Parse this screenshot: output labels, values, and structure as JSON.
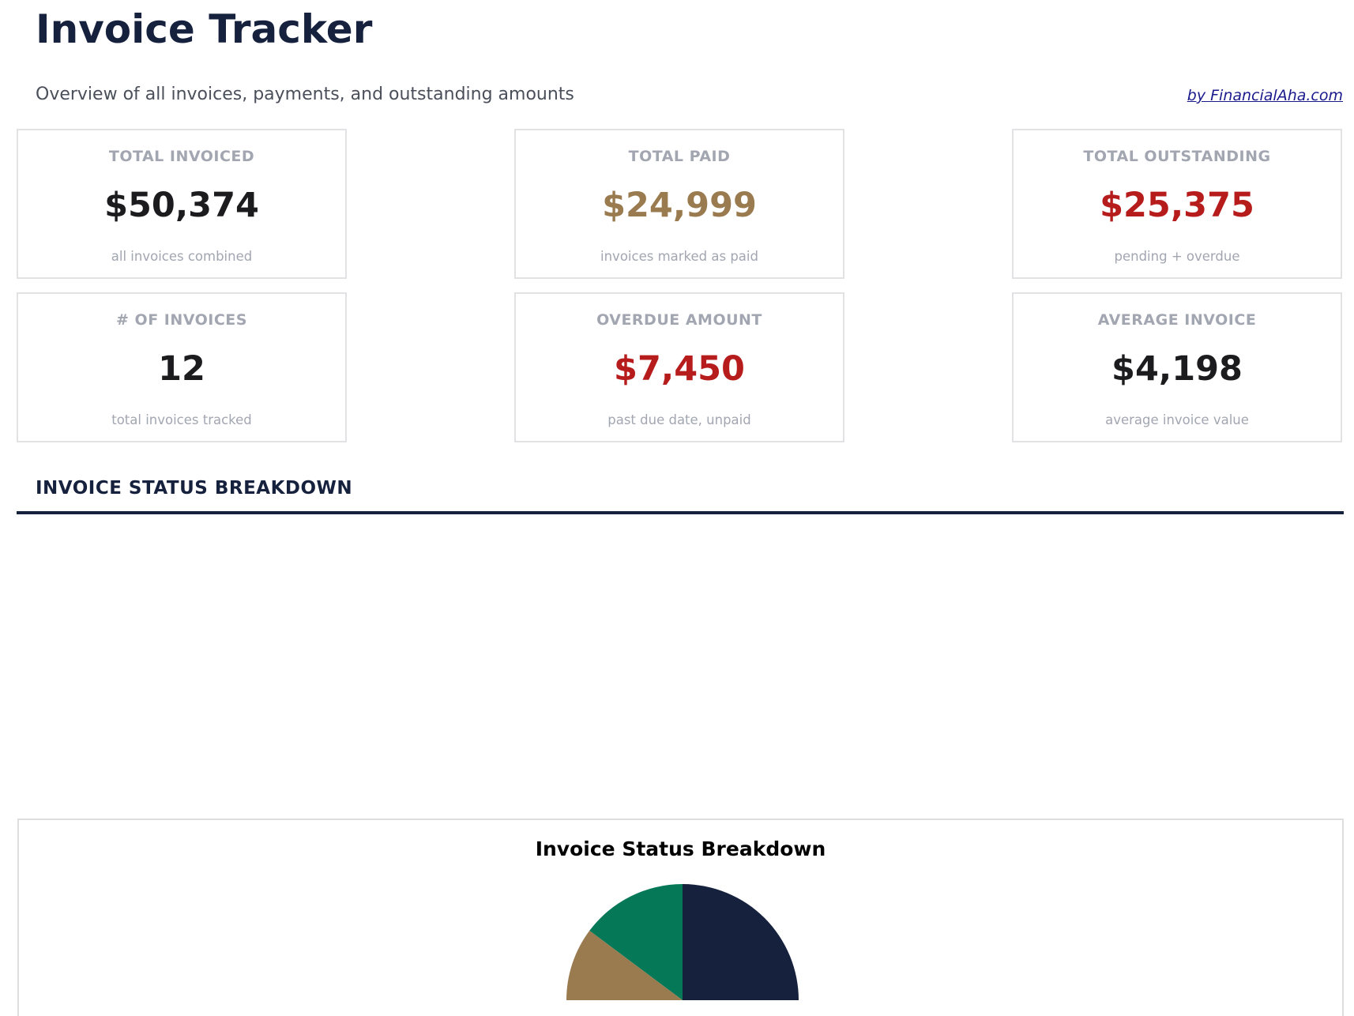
{
  "header": {
    "title": "Invoice Tracker",
    "subtitle": "Overview of all invoices, payments, and outstanding amounts",
    "credit": "by FinancialAha.com"
  },
  "cards": [
    {
      "label": "TOTAL INVOICED",
      "value": "$50,374",
      "sub": "all invoices combined",
      "color": "#1c1c1e"
    },
    {
      "label": "TOTAL PAID",
      "value": "$24,999",
      "sub": "invoices marked as paid",
      "color": "#9a7b4f"
    },
    {
      "label": "TOTAL OUTSTANDING",
      "value": "$25,375",
      "sub": "pending + overdue",
      "color": "#b71c1c"
    },
    {
      "label": "# OF INVOICES",
      "value": "12",
      "sub": "total invoices tracked",
      "color": "#1c1c1e"
    },
    {
      "label": "OVERDUE AMOUNT",
      "value": "$7,450",
      "sub": "past due date, unpaid",
      "color": "#b71c1c"
    },
    {
      "label": "AVERAGE INVOICE",
      "value": "$4,198",
      "sub": "average invoice value",
      "color": "#1c1c1e"
    }
  ],
  "section": {
    "title": "INVOICE STATUS BREAKDOWN"
  },
  "chart_data": {
    "type": "pie",
    "title": "Invoice Status Breakdown",
    "start_angle": 90,
    "direction": "counterclockwise",
    "slices": [
      {
        "value": 7450,
        "color": "#047857"
      },
      {
        "value": 24999,
        "color": "#9a7b4f"
      },
      {
        "value": 17925,
        "color": "#16213e"
      }
    ]
  }
}
